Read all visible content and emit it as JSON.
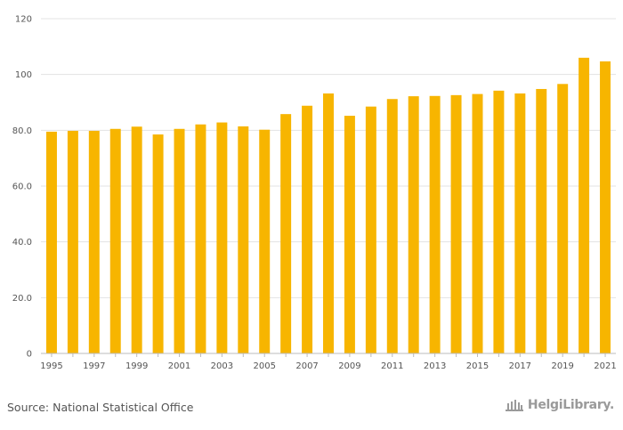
{
  "chart_data": {
    "type": "bar",
    "title": "",
    "xlabel": "",
    "ylabel": "",
    "categories": [
      "1995",
      "1996",
      "1997",
      "1998",
      "1999",
      "2000",
      "2001",
      "2002",
      "2003",
      "2004",
      "2005",
      "2006",
      "2007",
      "2008",
      "2009",
      "2010",
      "2011",
      "2012",
      "2013",
      "2014",
      "2015",
      "2016",
      "2017",
      "2018",
      "2019",
      "2020",
      "2021"
    ],
    "values": [
      79.5,
      79.8,
      79.8,
      80.5,
      81.3,
      78.5,
      80.5,
      82.1,
      82.8,
      81.4,
      80.2,
      85.8,
      88.8,
      93.2,
      85.2,
      88.5,
      91.2,
      92.2,
      92.3,
      92.6,
      93.0,
      94.2,
      93.2,
      94.8,
      96.6,
      106.0,
      104.7
    ],
    "ylim": [
      0,
      120
    ],
    "yticks": [
      "0",
      "20.0",
      "40.0",
      "60.0",
      "80.0",
      "100",
      "120"
    ],
    "xtick_labels": [
      "1995",
      "1997",
      "1999",
      "2001",
      "2003",
      "2005",
      "2007",
      "2009",
      "2011",
      "2013",
      "2015",
      "2017",
      "2019",
      "2021"
    ],
    "grid": true,
    "bar_color": "#f7b500"
  },
  "footer": {
    "source": "Source: National Statistical Office",
    "logo_text": "HelgiLibrary."
  }
}
